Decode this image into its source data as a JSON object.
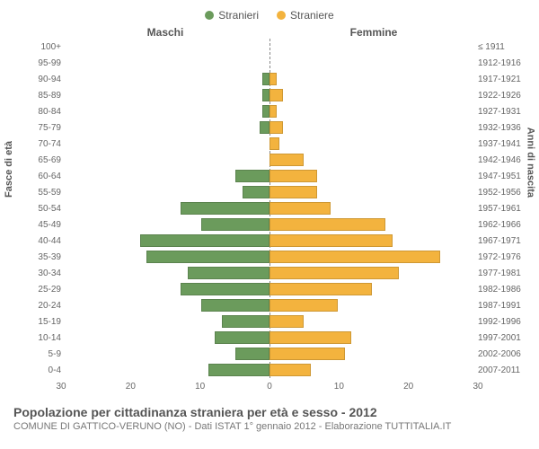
{
  "legend": {
    "male": {
      "label": "Stranieri",
      "color": "#6b9b5c"
    },
    "female": {
      "label": "Straniere",
      "color": "#f3b33e"
    }
  },
  "headers": {
    "male": "Maschi",
    "female": "Femmine"
  },
  "axis_labels": {
    "left": "Fasce di età",
    "right": "Anni di nascita"
  },
  "x_max": 30,
  "x_ticks_left": [
    30,
    20,
    10,
    0
  ],
  "x_ticks_right": [
    0,
    10,
    20,
    30
  ],
  "rows": [
    {
      "age": "100+",
      "birth": "≤ 1911",
      "m": 0,
      "f": 0
    },
    {
      "age": "95-99",
      "birth": "1912-1916",
      "m": 0,
      "f": 0
    },
    {
      "age": "90-94",
      "birth": "1917-1921",
      "m": 1,
      "f": 1
    },
    {
      "age": "85-89",
      "birth": "1922-1926",
      "m": 1,
      "f": 2
    },
    {
      "age": "80-84",
      "birth": "1927-1931",
      "m": 1,
      "f": 1
    },
    {
      "age": "75-79",
      "birth": "1932-1936",
      "m": 1.5,
      "f": 2
    },
    {
      "age": "70-74",
      "birth": "1937-1941",
      "m": 0,
      "f": 1.5
    },
    {
      "age": "65-69",
      "birth": "1942-1946",
      "m": 0,
      "f": 5
    },
    {
      "age": "60-64",
      "birth": "1947-1951",
      "m": 5,
      "f": 7
    },
    {
      "age": "55-59",
      "birth": "1952-1956",
      "m": 4,
      "f": 7
    },
    {
      "age": "50-54",
      "birth": "1957-1961",
      "m": 13,
      "f": 9
    },
    {
      "age": "45-49",
      "birth": "1962-1966",
      "m": 10,
      "f": 17
    },
    {
      "age": "40-44",
      "birth": "1967-1971",
      "m": 19,
      "f": 18
    },
    {
      "age": "35-39",
      "birth": "1972-1976",
      "m": 18,
      "f": 25
    },
    {
      "age": "30-34",
      "birth": "1977-1981",
      "m": 12,
      "f": 19
    },
    {
      "age": "25-29",
      "birth": "1982-1986",
      "m": 13,
      "f": 15
    },
    {
      "age": "20-24",
      "birth": "1987-1991",
      "m": 10,
      "f": 10
    },
    {
      "age": "15-19",
      "birth": "1992-1996",
      "m": 7,
      "f": 5
    },
    {
      "age": "10-14",
      "birth": "1997-2001",
      "m": 8,
      "f": 12
    },
    {
      "age": "5-9",
      "birth": "2002-2006",
      "m": 5,
      "f": 11
    },
    {
      "age": "0-4",
      "birth": "2007-2011",
      "m": 9,
      "f": 6
    }
  ],
  "footer": {
    "title": "Popolazione per cittadinanza straniera per età e sesso - 2012",
    "subtitle": "COMUNE DI GATTICO-VERUNO (NO) - Dati ISTAT 1° gennaio 2012 - Elaborazione TUTTITALIA.IT"
  }
}
